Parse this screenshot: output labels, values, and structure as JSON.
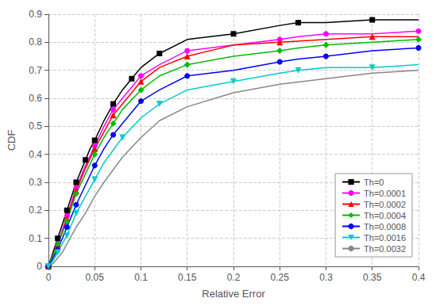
{
  "chart_data": {
    "type": "line",
    "xlabel": "Relative Error",
    "ylabel": "CDF",
    "xlim": [
      0,
      0.4
    ],
    "ylim": [
      0,
      0.9
    ],
    "xticks": [
      0,
      0.05,
      0.1,
      0.15,
      0.2,
      0.25,
      0.3,
      0.35,
      0.4
    ],
    "yticks": [
      0,
      0.1,
      0.2,
      0.3,
      0.4,
      0.5,
      0.6,
      0.7,
      0.8,
      0.9
    ],
    "grid": true,
    "legend": "lower right",
    "series": [
      {
        "name": "Th=0",
        "color": "#000000",
        "marker": "square",
        "x": [
          0,
          0.005,
          0.01,
          0.015,
          0.02,
          0.025,
          0.03,
          0.035,
          0.04,
          0.045,
          0.05,
          0.06,
          0.07,
          0.08,
          0.09,
          0.1,
          0.12,
          0.15,
          0.2,
          0.25,
          0.27,
          0.3,
          0.35,
          0.4
        ],
        "values": [
          0,
          0.05,
          0.1,
          0.15,
          0.2,
          0.25,
          0.3,
          0.34,
          0.38,
          0.42,
          0.45,
          0.52,
          0.58,
          0.63,
          0.67,
          0.71,
          0.76,
          0.81,
          0.83,
          0.86,
          0.87,
          0.87,
          0.88,
          0.88
        ]
      },
      {
        "name": "Th=0.0001",
        "color": "#ff00ff",
        "marker": "circle",
        "x": [
          0,
          0.005,
          0.01,
          0.015,
          0.02,
          0.025,
          0.03,
          0.04,
          0.05,
          0.06,
          0.07,
          0.08,
          0.1,
          0.12,
          0.15,
          0.2,
          0.25,
          0.27,
          0.3,
          0.35,
          0.4
        ],
        "values": [
          0,
          0.04,
          0.08,
          0.13,
          0.18,
          0.23,
          0.28,
          0.36,
          0.43,
          0.5,
          0.56,
          0.6,
          0.68,
          0.72,
          0.77,
          0.79,
          0.81,
          0.82,
          0.83,
          0.83,
          0.84
        ]
      },
      {
        "name": "Th=0.0002",
        "color": "#ff0000",
        "marker": "triangle",
        "x": [
          0,
          0.005,
          0.01,
          0.015,
          0.02,
          0.025,
          0.03,
          0.04,
          0.05,
          0.06,
          0.07,
          0.08,
          0.1,
          0.12,
          0.15,
          0.2,
          0.25,
          0.3,
          0.35,
          0.4
        ],
        "values": [
          0,
          0.04,
          0.08,
          0.12,
          0.17,
          0.22,
          0.27,
          0.35,
          0.42,
          0.48,
          0.54,
          0.58,
          0.66,
          0.71,
          0.75,
          0.79,
          0.8,
          0.81,
          0.82,
          0.82
        ]
      },
      {
        "name": "Th=0.0004",
        "color": "#00bb00",
        "marker": "diamond",
        "x": [
          0,
          0.005,
          0.01,
          0.015,
          0.02,
          0.025,
          0.03,
          0.04,
          0.05,
          0.06,
          0.07,
          0.08,
          0.1,
          0.12,
          0.15,
          0.2,
          0.25,
          0.27,
          0.3,
          0.35,
          0.4
        ],
        "values": [
          0,
          0.04,
          0.08,
          0.12,
          0.16,
          0.21,
          0.26,
          0.33,
          0.4,
          0.46,
          0.51,
          0.56,
          0.63,
          0.68,
          0.72,
          0.75,
          0.77,
          0.78,
          0.79,
          0.8,
          0.81
        ]
      },
      {
        "name": "Th=0.0008",
        "color": "#0000ff",
        "marker": "circle",
        "x": [
          0,
          0.005,
          0.01,
          0.015,
          0.02,
          0.025,
          0.03,
          0.04,
          0.05,
          0.06,
          0.07,
          0.08,
          0.1,
          0.12,
          0.15,
          0.2,
          0.25,
          0.27,
          0.3,
          0.35,
          0.4
        ],
        "values": [
          0,
          0.03,
          0.06,
          0.1,
          0.14,
          0.18,
          0.22,
          0.29,
          0.36,
          0.42,
          0.47,
          0.51,
          0.59,
          0.63,
          0.68,
          0.7,
          0.73,
          0.74,
          0.75,
          0.77,
          0.78
        ]
      },
      {
        "name": "Th=0.0016",
        "color": "#00cccc",
        "marker": "triangle-down",
        "x": [
          0,
          0.005,
          0.01,
          0.015,
          0.02,
          0.025,
          0.03,
          0.04,
          0.05,
          0.06,
          0.08,
          0.1,
          0.12,
          0.15,
          0.2,
          0.25,
          0.27,
          0.3,
          0.35,
          0.4
        ],
        "values": [
          0,
          0.02,
          0.05,
          0.08,
          0.11,
          0.15,
          0.19,
          0.25,
          0.31,
          0.37,
          0.46,
          0.53,
          0.58,
          0.63,
          0.66,
          0.69,
          0.7,
          0.71,
          0.71,
          0.72
        ]
      },
      {
        "name": "Th=0.0032",
        "color": "#888888",
        "marker": "none",
        "x": [
          0,
          0.005,
          0.01,
          0.015,
          0.02,
          0.025,
          0.03,
          0.04,
          0.05,
          0.06,
          0.08,
          0.1,
          0.12,
          0.15,
          0.2,
          0.25,
          0.3,
          0.35,
          0.4
        ],
        "values": [
          0,
          0.01,
          0.03,
          0.05,
          0.08,
          0.11,
          0.14,
          0.19,
          0.25,
          0.3,
          0.39,
          0.46,
          0.52,
          0.57,
          0.62,
          0.65,
          0.67,
          0.69,
          0.7
        ]
      }
    ]
  }
}
